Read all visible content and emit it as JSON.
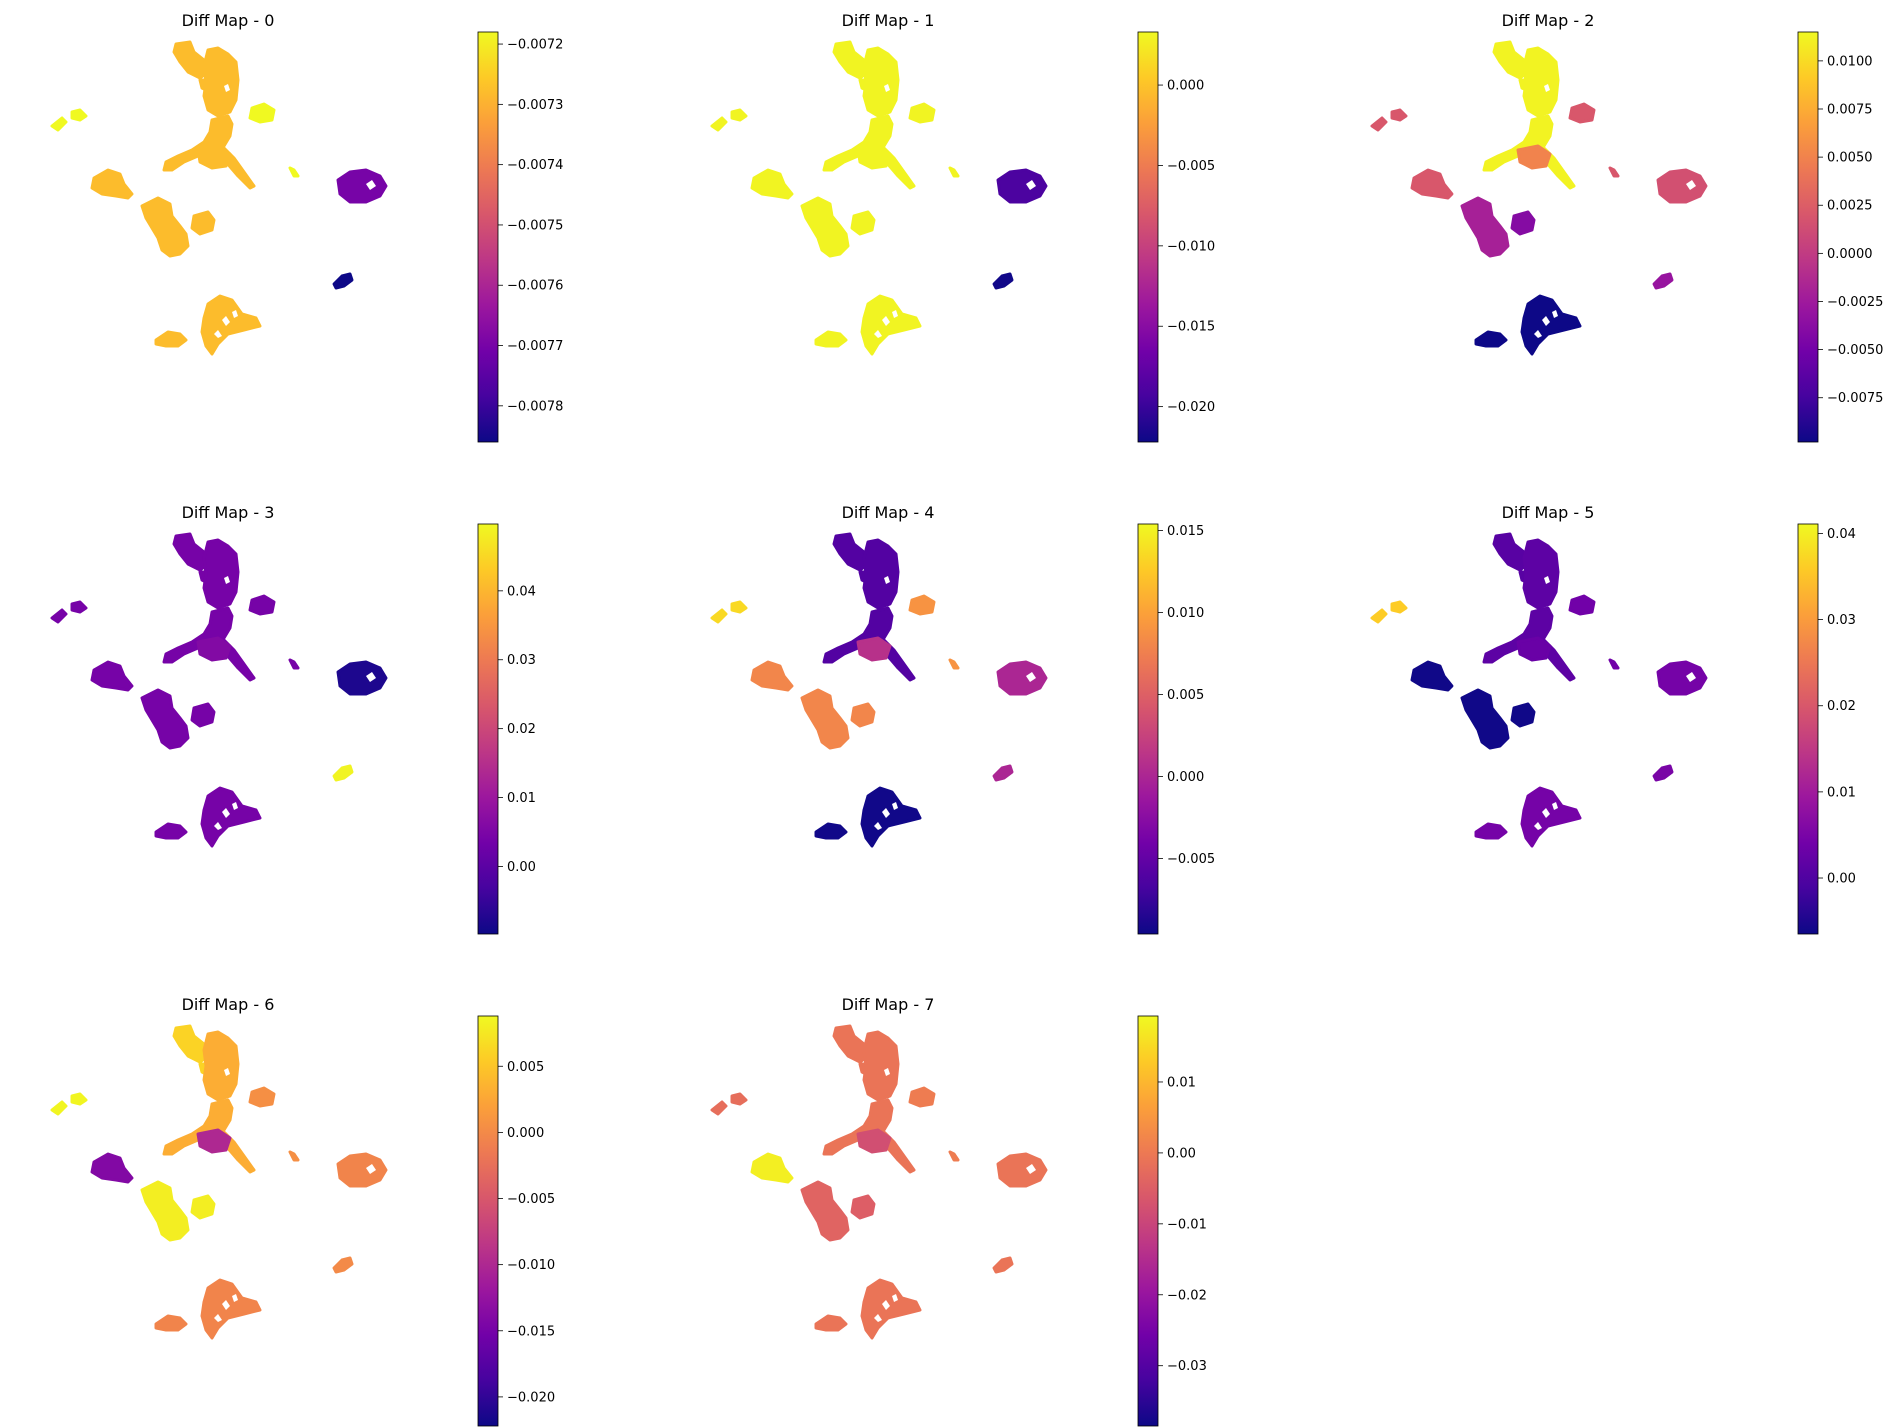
{
  "figure": {
    "colormap": "plasma",
    "colormap_stops": [
      "#0d0887",
      "#46039f",
      "#7201a8",
      "#9c179e",
      "#bd3786",
      "#d8576b",
      "#ed7953",
      "#fb9f3a",
      "#fdca26",
      "#f0f921"
    ]
  },
  "chart_data": [
    {
      "type": "scatter",
      "title": "Diff Map - 0",
      "colorbar": {
        "range": [
          -0.00786,
          -0.00718
        ],
        "ticks": [
          -0.0072,
          -0.0073,
          -0.0074,
          -0.0075,
          -0.0076,
          -0.0077,
          -0.0078
        ],
        "tick_labels": [
          "−0.0072",
          "−0.0073",
          "−0.0074",
          "−0.0075",
          "−0.0076",
          "−0.0077",
          "−0.0078"
        ]
      },
      "cluster_values": {
        "a": -0.00728,
        "b": -0.00718,
        "c": -0.00728,
        "d": -0.00728,
        "e": -0.00728,
        "f": -0.00728,
        "g": -0.00728,
        "h": -0.00718,
        "i": -0.0077,
        "j": -0.00786,
        "k": -0.00728,
        "l": -0.00728
      }
    },
    {
      "type": "scatter",
      "title": "Diff Map - 1",
      "colorbar": {
        "range": [
          -0.0222,
          0.0033
        ],
        "ticks": [
          0.0,
          -0.005,
          -0.01,
          -0.015,
          -0.02
        ],
        "tick_labels": [
          "0.000",
          "−0.005",
          "−0.010",
          "−0.015",
          "−0.020"
        ]
      },
      "cluster_values": {
        "a": 0.003,
        "b": 0.003,
        "c": 0.003,
        "d": 0.003,
        "e": 0.003,
        "f": 0.003,
        "g": 0.003,
        "h": 0.003,
        "i": -0.019,
        "j": -0.022,
        "k": 0.003,
        "l": 0.003
      }
    },
    {
      "type": "scatter",
      "title": "Diff Map - 2",
      "colorbar": {
        "range": [
          -0.0098,
          0.0115
        ],
        "ticks": [
          0.01,
          0.0075,
          0.005,
          0.0025,
          0.0,
          -0.0025,
          -0.005,
          -0.0075
        ],
        "tick_labels": [
          "0.0100",
          "0.0075",
          "0.0050",
          "0.0025",
          "0.0000",
          "−0.0025",
          "−0.0050",
          "−0.0075"
        ]
      },
      "cluster_values": {
        "a": 0.0112,
        "b": 0.002,
        "c": 0.0112,
        "d": 0.005,
        "e": 0.002,
        "f": -0.002,
        "g": -0.004,
        "h": 0.002,
        "i": 0.0015,
        "j": -0.003,
        "k": -0.0098,
        "l": -0.0098
      }
    },
    {
      "type": "scatter",
      "title": "Diff Map - 3",
      "colorbar": {
        "range": [
          -0.0098,
          0.0497
        ],
        "ticks": [
          0.04,
          0.03,
          0.02,
          0.01,
          0.0
        ],
        "tick_labels": [
          "0.04",
          "0.03",
          "0.02",
          "0.01",
          "0.00"
        ]
      },
      "cluster_values": {
        "a": 0.004,
        "b": 0.004,
        "c": 0.004,
        "d": 0.006,
        "e": 0.004,
        "f": 0.004,
        "g": 0.004,
        "h": 0.004,
        "i": -0.008,
        "j": 0.049,
        "k": 0.004,
        "l": 0.004
      }
    },
    {
      "type": "scatter",
      "title": "Diff Map - 4",
      "colorbar": {
        "range": [
          -0.0096,
          0.0154
        ],
        "ticks": [
          0.015,
          0.01,
          0.005,
          0.0,
          -0.005
        ],
        "tick_labels": [
          "0.015",
          "0.010",
          "0.005",
          "0.000",
          "−0.005"
        ]
      },
      "cluster_values": {
        "a": -0.006,
        "b": 0.0135,
        "c": -0.006,
        "d": 0.001,
        "e": 0.008,
        "f": 0.008,
        "g": 0.008,
        "h": 0.009,
        "i": 0.0,
        "j": 0.0,
        "k": -0.0094,
        "l": -0.0094
      }
    },
    {
      "type": "scatter",
      "title": "Diff Map - 5",
      "colorbar": {
        "range": [
          -0.0065,
          0.0411
        ],
        "ticks": [
          0.04,
          0.03,
          0.02,
          0.01,
          0.0
        ],
        "tick_labels": [
          "0.04",
          "0.03",
          "0.02",
          "0.01",
          "0.00"
        ]
      },
      "cluster_values": {
        "a": 0.001,
        "b": 0.036,
        "c": 0.0015,
        "d": 0.003,
        "e": -0.0062,
        "f": -0.0062,
        "g": -0.0062,
        "h": 0.004,
        "i": 0.0045,
        "j": 0.005,
        "k": 0.0045,
        "l": 0.0045
      }
    },
    {
      "type": "scatter",
      "title": "Diff Map - 6",
      "colorbar": {
        "range": [
          -0.0222,
          0.0088
        ],
        "ticks": [
          0.005,
          0.0,
          -0.005,
          -0.01,
          -0.015,
          -0.02
        ],
        "tick_labels": [
          "0.005",
          "0.000",
          "−0.005",
          "−0.010",
          "−0.015",
          "−0.020"
        ]
      },
      "cluster_values": {
        "a": 0.006,
        "b": 0.0085,
        "c": 0.003,
        "d": -0.01,
        "e": -0.014,
        "f": 0.008,
        "g": 0.008,
        "h": 0.0005,
        "i": -0.0005,
        "j": 0.0,
        "k": -0.0005,
        "l": -0.0005
      }
    },
    {
      "type": "scatter",
      "title": "Diff Map - 7",
      "colorbar": {
        "range": [
          -0.0385,
          0.0193
        ],
        "ticks": [
          0.01,
          0.0,
          -0.01,
          -0.02,
          -0.03
        ],
        "tick_labels": [
          "0.01",
          "0.00",
          "−0.01",
          "−0.02",
          "−0.03"
        ]
      },
      "cluster_values": {
        "a": -0.001,
        "b": -0.002,
        "c": -0.001,
        "d": -0.008,
        "e": 0.018,
        "f": -0.004,
        "g": -0.005,
        "h": 0.0005,
        "i": -0.001,
        "j": -0.001,
        "k": -0.001,
        "l": -0.001
      }
    }
  ]
}
